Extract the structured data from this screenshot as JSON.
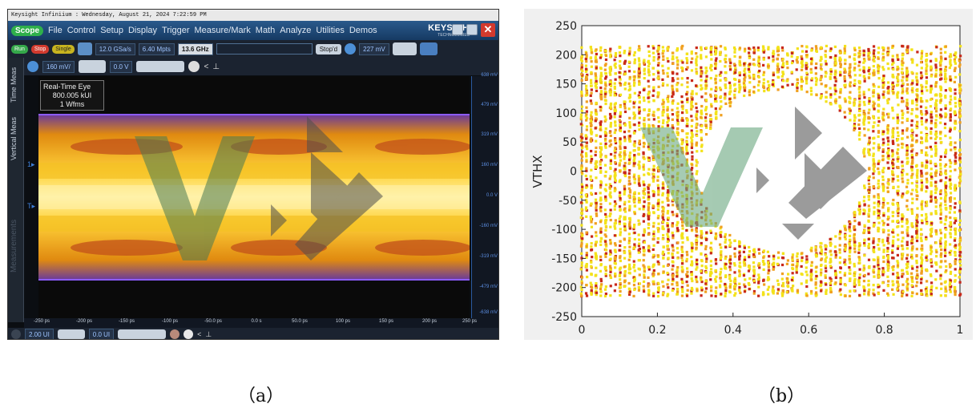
{
  "captions": {
    "a": "（a）",
    "b": "（b）"
  },
  "scope": {
    "window_title": "Keysight Infiniium : Wednesday, August 21, 2024 7:22:59 PM",
    "scope_tab": "Scope",
    "menu": [
      "File",
      "Control",
      "Setup",
      "Display",
      "Trigger",
      "Measure/Mark",
      "Math",
      "Analyze",
      "Utilities",
      "Demos"
    ],
    "brand": "KEYSIGHT",
    "brand_sub": "TECHNOLOGIES",
    "close_label": "✕",
    "run_label": "Run",
    "stop_label": "Stop",
    "single_label": "Single",
    "sample_rate": "12.0 GSa/s",
    "memory_depth": "6.40 Mpts",
    "bandwidth": "13.6 GHz",
    "stopd_label": "Stop'd",
    "trigger_level": "227 mV",
    "vertical_scale": "160 mV/",
    "vertical_offset": "0.0 V",
    "side_tabs": [
      "Time Meas",
      "Vertical Meas",
      "Measurements"
    ],
    "info": {
      "line1": "Real-Time Eye",
      "line2": "800.005 kUI",
      "line3": "1 Wfms"
    },
    "right_ticks": [
      "638 mV",
      "479 mV",
      "319 mV",
      "160 mV",
      "0.0 V",
      "-160 mV",
      "-319 mV",
      "-479 mV",
      "-638 mV"
    ],
    "bottom_ticks": [
      "-250 ps",
      "-200 ps",
      "-150 ps",
      "-100 ps",
      "-50.0 ps",
      "0.0 s",
      "50.0 ps",
      "100 ps",
      "150 ps",
      "200 ps",
      "250 ps"
    ],
    "horizontal_scale": "2.00 UI",
    "horizontal_offset": "0.0 UI"
  },
  "chart_data": {
    "type": "scatter",
    "ylabel": "VTHX",
    "xlabel": "",
    "xlim": [
      0,
      1
    ],
    "ylim": [
      -250,
      250
    ],
    "xticks": [
      0,
      0.2,
      0.4,
      0.6,
      0.8,
      1
    ],
    "xtick_labels": [
      "0",
      "0.2",
      "0.4",
      "0.6",
      "0.8",
      "1"
    ],
    "yticks": [
      -250,
      -200,
      -150,
      -100,
      -50,
      0,
      50,
      100,
      150,
      200,
      250
    ],
    "ytick_labels": [
      "-250",
      "-200",
      "-150",
      "-100",
      "-50",
      "0",
      "50",
      "100",
      "150",
      "200",
      "250"
    ],
    "colors": {
      "high": "#f3e21a",
      "mid": "#f0a020",
      "low": "#c8281a"
    },
    "series": [
      {
        "name": "",
        "band": "upper",
        "y_center": 205,
        "y_spread": 8
      },
      {
        "name": "",
        "band": "lower",
        "y_center": -195,
        "y_spread": 10
      },
      {
        "name": "",
        "band": "eye-opening-upper",
        "x_center": 0.53,
        "x_halfwidth": 0.22,
        "y_top": 140
      },
      {
        "name": "",
        "band": "eye-opening-lower",
        "x_center": 0.53,
        "x_halfwidth": 0.22,
        "y_bottom": -140
      }
    ]
  }
}
